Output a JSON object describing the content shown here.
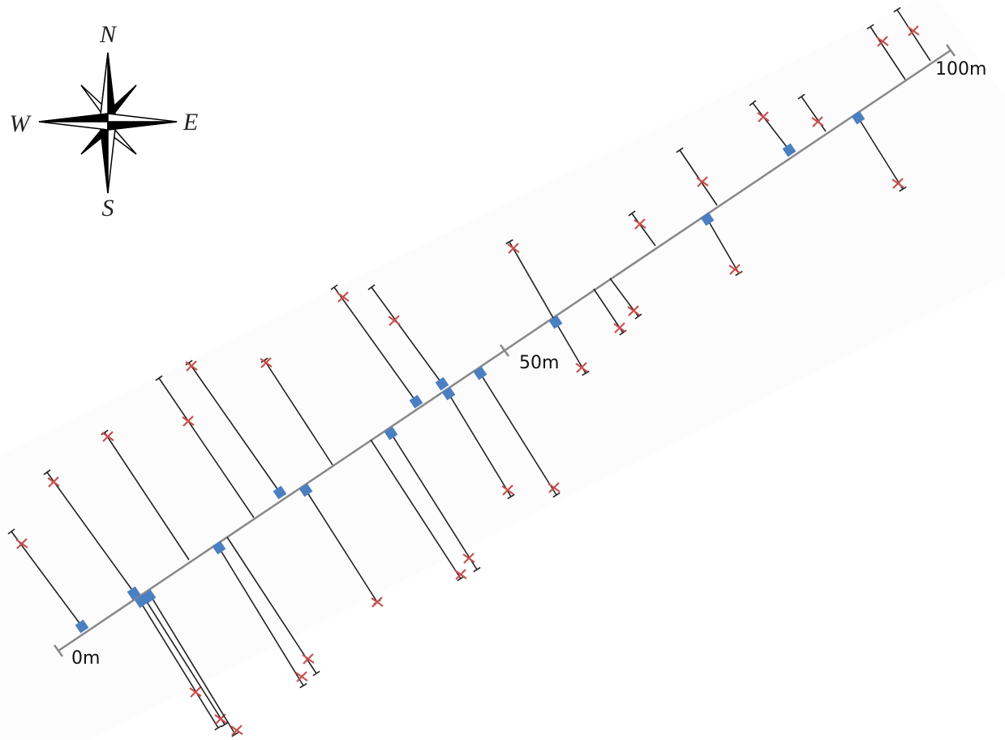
{
  "compass": {
    "north": "N",
    "south": "S",
    "east": "E",
    "west": "W"
  },
  "scale": {
    "labels": [
      "0m",
      "50m",
      "100m"
    ]
  }
}
